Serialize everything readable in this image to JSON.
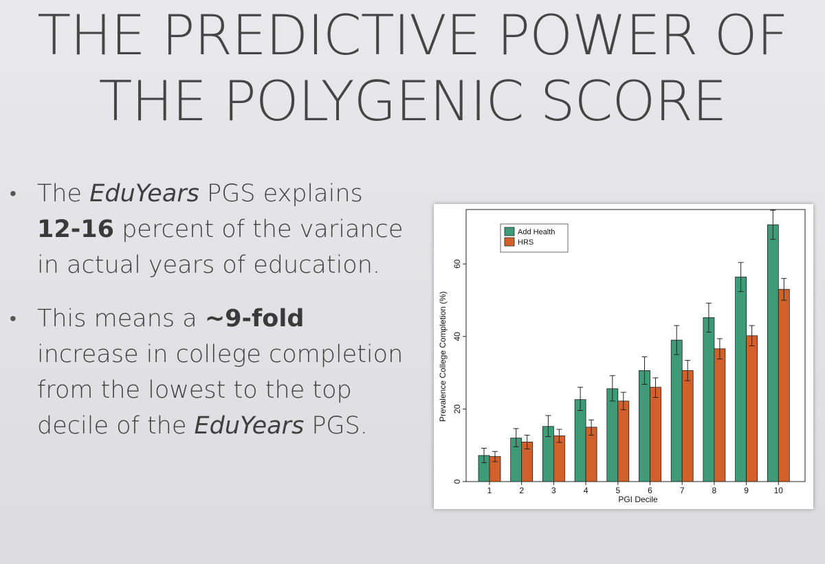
{
  "slide": {
    "title_line1": "THE PREDICTIVE POWER OF",
    "title_line2": "THE POLYGENIC SCORE",
    "bullet1": {
      "t1": "The ",
      "t2": "EduYears",
      "t3": " PGS explains",
      "t4": "12-16",
      "t5": " percent of the variance in actual years of education."
    },
    "bullet2": {
      "t1": "This means a ",
      "t2": "~9-fold",
      "t3": " increase in college completion from the lowest to the top decile of the ",
      "t4": "EduYears",
      "t5": " PGS."
    }
  },
  "colors": {
    "add_health": "#3f9a78",
    "hrs": "#d1602a"
  },
  "chart_data": {
    "type": "bar",
    "xlabel": "PGI Decile",
    "ylabel": "Prevalence College Completion (%)",
    "categories": [
      "1",
      "2",
      "3",
      "4",
      "5",
      "6",
      "7",
      "8",
      "9",
      "10"
    ],
    "ylim": [
      0,
      75
    ],
    "yticks": [
      0,
      20,
      40,
      60
    ],
    "legend_position": "top-left",
    "series": [
      {
        "name": "Add Health",
        "values": [
          7.2,
          12.0,
          15.2,
          22.6,
          25.6,
          30.6,
          39.0,
          45.2,
          56.4,
          70.8
        ],
        "err_low": [
          5.2,
          9.6,
          12.4,
          19.6,
          22.2,
          26.8,
          35.0,
          41.2,
          52.4,
          66.8
        ],
        "err_high": [
          9.2,
          14.6,
          18.2,
          26.0,
          29.2,
          34.4,
          43.0,
          49.2,
          60.4,
          74.8
        ]
      },
      {
        "name": "HRS",
        "values": [
          6.9,
          10.9,
          12.6,
          15.0,
          22.2,
          26.0,
          30.6,
          36.6,
          40.2,
          53.0
        ],
        "err_low": [
          5.5,
          9.0,
          10.8,
          12.8,
          19.8,
          23.2,
          27.8,
          33.8,
          37.4,
          50.0
        ],
        "err_high": [
          8.3,
          12.8,
          14.4,
          17.0,
          24.6,
          28.6,
          33.4,
          39.4,
          43.0,
          56.0
        ]
      }
    ]
  }
}
